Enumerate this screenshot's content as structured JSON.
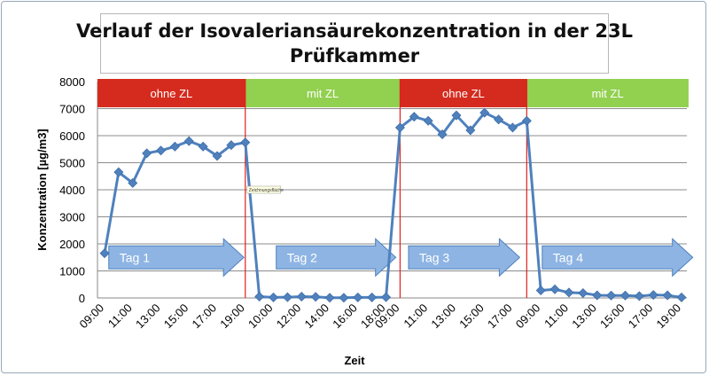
{
  "title": [
    "Verlauf der Isovaleriansäurekonzentration in der 23L",
    "Prüfkammer"
  ],
  "chart_data": {
    "type": "line",
    "ylabel": "Konzentration [µg/m3]",
    "xlabel": "Zeit",
    "ylim": [
      0,
      8000
    ],
    "yticks": [
      0,
      1000,
      2000,
      3000,
      4000,
      5000,
      6000,
      7000,
      8000
    ],
    "grid": true,
    "series": [
      {
        "color": "#4f81bd",
        "values": [
          1650,
          4650,
          4250,
          5350,
          5450,
          5600,
          5800,
          5600,
          5250,
          5650,
          5750,
          50,
          20,
          30,
          50,
          40,
          10,
          10,
          20,
          20,
          30,
          6300,
          6700,
          6550,
          6050,
          6750,
          6200,
          6850,
          6600,
          6300,
          6550,
          280,
          320,
          200,
          180,
          100,
          90,
          90,
          70,
          110,
          100,
          20
        ]
      }
    ],
    "x_tick_labels": [
      "09:00",
      "11:00",
      "13:00",
      "15:00",
      "17:00",
      "19:00",
      "10:00",
      "12:00",
      "14:00",
      "16:00",
      "18:00",
      "09:00",
      "11:00",
      "13:00",
      "15:00",
      "17:00",
      "09:00",
      "11:00",
      "13:00",
      "15:00",
      "17:00",
      "19:00"
    ],
    "x_tick_index": [
      0,
      2,
      4,
      6,
      8,
      10,
      12,
      14,
      16,
      18,
      20,
      21,
      23,
      25,
      27,
      29,
      31,
      33,
      35,
      37,
      39,
      41
    ],
    "phases": [
      {
        "label": "ohne ZL",
        "color": "#d52b1e",
        "from": 0,
        "to": 10
      },
      {
        "label": "mit ZL",
        "color": "#92d050",
        "from": 10,
        "to": 21
      },
      {
        "label": "ohne ZL",
        "color": "#d52b1e",
        "from": 21,
        "to": 30
      },
      {
        "label": "mit ZL",
        "color": "#92d050",
        "from": 30,
        "to": 41.5
      }
    ],
    "phase_dividers": [
      10,
      21,
      30
    ],
    "arrows": [
      {
        "label": "Tag 1",
        "from": 0.3,
        "to": 9.9
      },
      {
        "label": "Tag 2",
        "from": 12.2,
        "to": 20.7
      },
      {
        "label": "Tag 3",
        "from": 21.6,
        "to": 29.5
      },
      {
        "label": "Tag 4",
        "from": 31.1,
        "to": 41.8
      }
    ],
    "arrow_level": 1500,
    "tooltip": {
      "text": "Zeichnungsfläche",
      "at": 10
    }
  }
}
